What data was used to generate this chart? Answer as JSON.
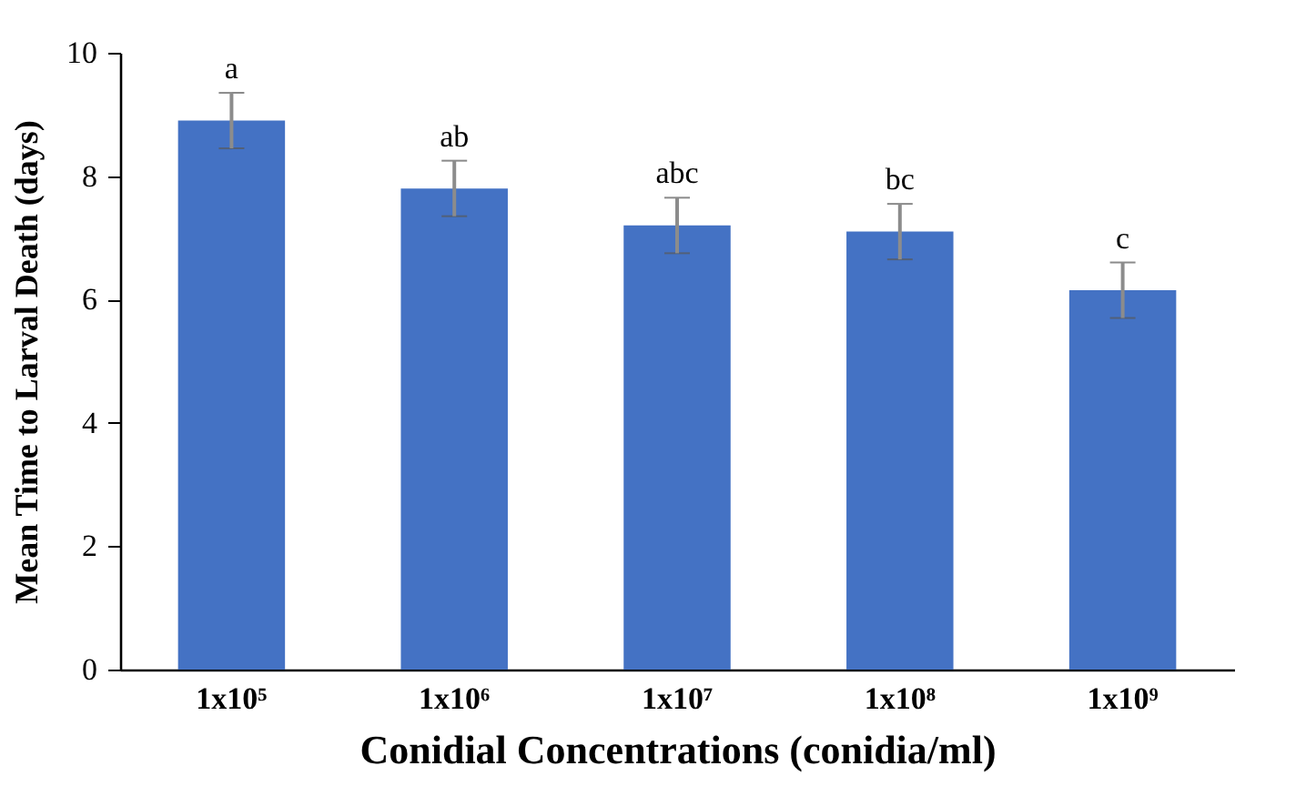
{
  "chart_data": {
    "type": "bar",
    "xlabel": "Conidial Concentrations (conidia/ml)",
    "ylabel": "Mean Time to Larval Death (days)",
    "categories": [
      "1x10⁵",
      "1x10⁶",
      "1x10⁷",
      "1x10⁸",
      "1x10⁹"
    ],
    "values": [
      8.9,
      7.8,
      7.2,
      7.1,
      6.15
    ],
    "errors": [
      0.45,
      0.45,
      0.45,
      0.45,
      0.45
    ],
    "color": "#4472c4",
    "ylim": [
      0,
      10
    ],
    "yticks": [
      0,
      2,
      4,
      6,
      8,
      10
    ],
    "grid": false,
    "annotations": [
      {
        "text": "a",
        "x": "1x10⁵",
        "y": 9.35
      },
      {
        "text": "ab",
        "x": "1x10⁶",
        "y": 8.25
      },
      {
        "text": "abc",
        "x": "1x10⁷",
        "y": 7.65
      },
      {
        "text": "bc",
        "x": "1x10⁸",
        "y": 7.55
      },
      {
        "text": "c",
        "x": "1x10⁹",
        "y": 6.6
      }
    ]
  }
}
